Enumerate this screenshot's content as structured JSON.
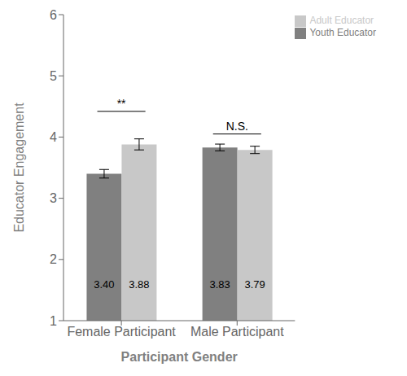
{
  "chart_data": {
    "type": "bar",
    "categories": [
      "Female Participant",
      "Male Participant"
    ],
    "series": [
      {
        "name": "Youth Educator",
        "color": "#808080",
        "values": [
          3.4,
          3.83
        ],
        "value_labels": [
          "3.40",
          "3.83"
        ],
        "errors": [
          0.07,
          0.055
        ]
      },
      {
        "name": "Adult Educator",
        "color": "#c8c8c8",
        "values": [
          3.88,
          3.79
        ],
        "value_labels": [
          "3.88",
          "3.79"
        ],
        "errors": [
          0.09,
          0.06
        ]
      }
    ],
    "xlabel": "Participant Gender",
    "ylabel": "Educator Engagement",
    "ylim": [
      1,
      6
    ],
    "yticks": [
      1,
      2,
      3,
      4,
      5,
      6
    ],
    "legend": "upper right",
    "grid": false,
    "data_labels": true,
    "annotations": [
      {
        "text": "**",
        "category": "Female Participant",
        "y": 4.42
      },
      {
        "text": "N.S.",
        "category": "Male Participant",
        "y": 4.05
      }
    ]
  }
}
